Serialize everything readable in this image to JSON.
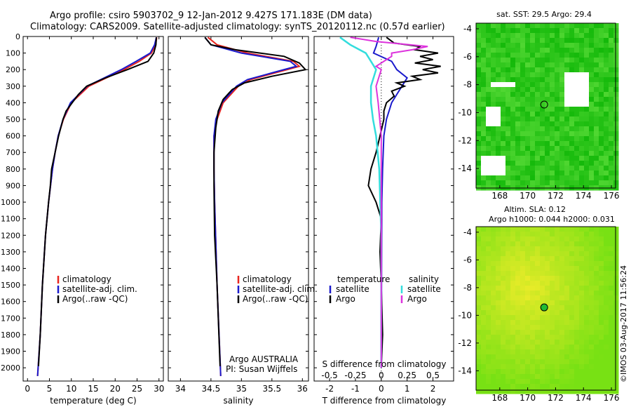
{
  "header": {
    "title_line1": "Argo profile: csiro 5903702_9 12-Jan-2012 9.427S 171.183E (DM data)",
    "title_line2": "Climatology: CARS2009. Satellite-adjusted climatology: synTS_20120112.nc (0.57d earlier)"
  },
  "panels": {
    "temperature": {
      "xlabel": "temperature (deg C)",
      "legend": [
        "climatology",
        "satellite-adj. clim.",
        "Argo(..raw -QC)"
      ]
    },
    "salinity": {
      "xlabel": "salinity",
      "legend": [
        "climatology",
        "satellite-adj. clim.",
        "Argo(..raw -QC)"
      ],
      "credit_line1": "Argo AUSTRALIA",
      "credit_line2": "PI: Susan Wijffels"
    },
    "difference": {
      "xlabel": "T difference from climatology",
      "top_label": "S difference from climatology",
      "legend_temp_title": "temperature",
      "legend_sal_title": "salinity",
      "legend_items": [
        "satellite",
        "Argo",
        "satellite",
        "Argo"
      ]
    },
    "sst_map": {
      "title": "sat. SST: 29.5 Argo: 29.4"
    },
    "sla_map": {
      "title_line1": "Altim. SLA: 0.12",
      "title_line2": "Argo h1000: 0.044 h2000: 0.031"
    },
    "credit_vertical": "©IMOS 03-Aug-2017 11:56:24"
  },
  "colors": {
    "climatology": "#e8251f",
    "satellite": "#1a1acc",
    "argo": "#000000",
    "sal_satellite": "#33dddd",
    "sal_argo": "#dd33dd"
  },
  "chart_data": [
    {
      "type": "line",
      "title": "",
      "xlabel": "temperature (deg C)",
      "ylabel": "",
      "xlim": [
        -1,
        31
      ],
      "ylim": [
        2080,
        0
      ],
      "xticks": [
        0,
        5,
        10,
        15,
        20,
        25,
        30
      ],
      "yticks": [
        0,
        100,
        200,
        300,
        400,
        500,
        600,
        700,
        800,
        900,
        1000,
        1100,
        1200,
        1300,
        1400,
        1500,
        1600,
        1700,
        1800,
        1900,
        2000
      ],
      "series": [
        {
          "name": "climatology",
          "pressure": [
            5,
            50,
            100,
            150,
            200,
            250,
            300,
            400,
            500,
            600,
            700,
            800,
            1000,
            1200,
            1500,
            1800,
            2050
          ],
          "values": [
            29.5,
            29.2,
            28.3,
            25.5,
            22.0,
            18.0,
            14.0,
            10.0,
            8.2,
            7.0,
            6.3,
            5.7,
            4.8,
            4.1,
            3.4,
            2.9,
            2.3
          ]
        },
        {
          "name": "satellite-adj. clim.",
          "pressure": [
            5,
            50,
            100,
            150,
            200,
            250,
            300,
            400,
            500,
            600,
            700,
            800,
            1000,
            1200,
            1500,
            1800,
            2050
          ],
          "values": [
            29.4,
            29.0,
            28.0,
            24.8,
            21.4,
            17.5,
            13.6,
            9.8,
            8.1,
            7.0,
            6.3,
            5.7,
            4.8,
            4.1,
            3.4,
            2.9,
            2.3
          ]
        },
        {
          "name": "Argo(..raw -QC)",
          "pressure": [
            5,
            50,
            100,
            150,
            200,
            250,
            300,
            350,
            400,
            450,
            500,
            600,
            700,
            800,
            900,
            1000,
            1200,
            1500,
            1800,
            1990
          ],
          "values": [
            29.4,
            29.3,
            28.8,
            27.5,
            22.8,
            17.8,
            13.5,
            11.6,
            10.2,
            8.8,
            8.1,
            7.1,
            6.3,
            5.5,
            5.2,
            4.8,
            4.1,
            3.4,
            2.9,
            2.5
          ]
        }
      ]
    },
    {
      "type": "line",
      "title": "",
      "xlabel": "salinity",
      "ylabel": "",
      "xlim": [
        33.8,
        36.1
      ],
      "ylim": [
        2080,
        0
      ],
      "xticks": [
        34,
        34.5,
        35,
        35.5,
        36
      ],
      "series": [
        {
          "name": "climatology",
          "pressure": [
            5,
            50,
            100,
            150,
            180,
            220,
            260,
            300,
            400,
            500,
            600,
            800,
            1000,
            1500,
            2050
          ],
          "values": [
            34.45,
            34.6,
            35.1,
            35.85,
            35.95,
            35.55,
            35.15,
            34.95,
            34.7,
            34.6,
            34.55,
            34.55,
            34.56,
            34.6,
            34.66
          ]
        },
        {
          "name": "satellite-adj. clim.",
          "pressure": [
            5,
            50,
            100,
            150,
            180,
            220,
            260,
            300,
            400,
            500,
            600,
            800,
            1000,
            1500,
            2050
          ],
          "values": [
            34.4,
            34.5,
            35.0,
            35.8,
            35.9,
            35.5,
            35.1,
            34.92,
            34.68,
            34.58,
            34.55,
            34.55,
            34.56,
            34.6,
            34.66
          ]
        },
        {
          "name": "Argo(..raw -QC)",
          "pressure": [
            5,
            50,
            80,
            120,
            160,
            200,
            240,
            280,
            320,
            380,
            450,
            550,
            700,
            900,
            1200,
            1500,
            1800,
            1990
          ],
          "values": [
            34.4,
            34.5,
            34.9,
            35.7,
            35.95,
            36.05,
            35.5,
            35.05,
            34.85,
            34.7,
            34.62,
            34.58,
            34.55,
            34.55,
            34.56,
            34.6,
            34.63,
            34.65
          ]
        }
      ]
    },
    {
      "type": "line",
      "title": "",
      "xlabel": "T difference from climatology",
      "top_label": "S difference from climatology",
      "xlim": [
        -2.6,
        2.8
      ],
      "ylim": [
        2080,
        0
      ],
      "xticks_T": [
        -2,
        -1,
        0,
        1,
        2
      ],
      "xticks_S": [
        -0.5,
        -0.25,
        0,
        0.25,
        0.5
      ],
      "series": [
        {
          "name": "temperature satellite",
          "variable": "T",
          "pressure": [
            5,
            60,
            100,
            150,
            200,
            250,
            300,
            350,
            400,
            500,
            600,
            800,
            1000,
            1500,
            2000
          ],
          "values": [
            -0.1,
            -0.2,
            -0.3,
            0.4,
            0.6,
            1.0,
            0.8,
            0.6,
            0.4,
            0.2,
            0.1,
            0.05,
            0.02,
            0.01,
            0
          ]
        },
        {
          "name": "temperature Argo",
          "variable": "T",
          "pressure": [
            5,
            40,
            60,
            80,
            100,
            120,
            140,
            160,
            180,
            200,
            220,
            240,
            260,
            280,
            300,
            330,
            360,
            400,
            450,
            500,
            600,
            700,
            800,
            900,
            1000,
            1100,
            1300,
            1500,
            1800,
            2000
          ],
          "values": [
            0.2,
            0.5,
            1.5,
            1.3,
            2.2,
            1.5,
            2.0,
            1.3,
            2.3,
            1.6,
            2.2,
            1.2,
            1.5,
            0.6,
            0.9,
            0.4,
            0.5,
            0.2,
            0.1,
            0.1,
            -0.05,
            -0.2,
            -0.4,
            -0.5,
            -0.2,
            0,
            -0.05,
            0,
            0.05,
            0
          ]
        },
        {
          "name": "salinity satellite",
          "variable": "S",
          "pressure": [
            5,
            50,
            100,
            150,
            200,
            300,
            400,
            500,
            600,
            800,
            1000,
            1200,
            1500,
            2000
          ],
          "values": [
            -0.4,
            -0.3,
            -0.15,
            -0.1,
            -0.05,
            -0.1,
            -0.1,
            -0.08,
            -0.05,
            -0.02,
            -0.01,
            0,
            0,
            0
          ]
        },
        {
          "name": "salinity Argo",
          "variable": "S",
          "pressure": [
            5,
            30,
            60,
            80,
            100,
            120,
            140,
            160,
            180,
            200,
            300,
            400,
            600,
            1000,
            2000
          ],
          "values": [
            -0.3,
            -0.05,
            0.45,
            0.3,
            0.1,
            0.1,
            0.05,
            0.0,
            -0.05,
            0.0,
            -0.05,
            -0.03,
            0,
            0,
            0
          ]
        }
      ]
    },
    {
      "type": "heatmap",
      "title": "sat. SST: 29.5 Argo: 29.4",
      "xlim": [
        166.3,
        176.3
      ],
      "ylim": [
        -15.4,
        -3.6
      ],
      "xticks": [
        168,
        170,
        172,
        174,
        176
      ],
      "yticks": [
        -4,
        -6,
        -8,
        -10,
        -12,
        -14
      ],
      "marker": {
        "lon": 171.183,
        "lat": -9.427
      }
    },
    {
      "type": "heatmap",
      "title": "Altim. SLA: 0.12 / Argo h1000: 0.044 h2000: 0.031",
      "xlim": [
        166.3,
        176.3
      ],
      "ylim": [
        -15.4,
        -3.6
      ],
      "xticks": [
        168,
        170,
        172,
        174,
        176
      ],
      "yticks": [
        -4,
        -6,
        -8,
        -10,
        -12,
        -14
      ],
      "marker": {
        "lon": 171.183,
        "lat": -9.427
      }
    }
  ]
}
